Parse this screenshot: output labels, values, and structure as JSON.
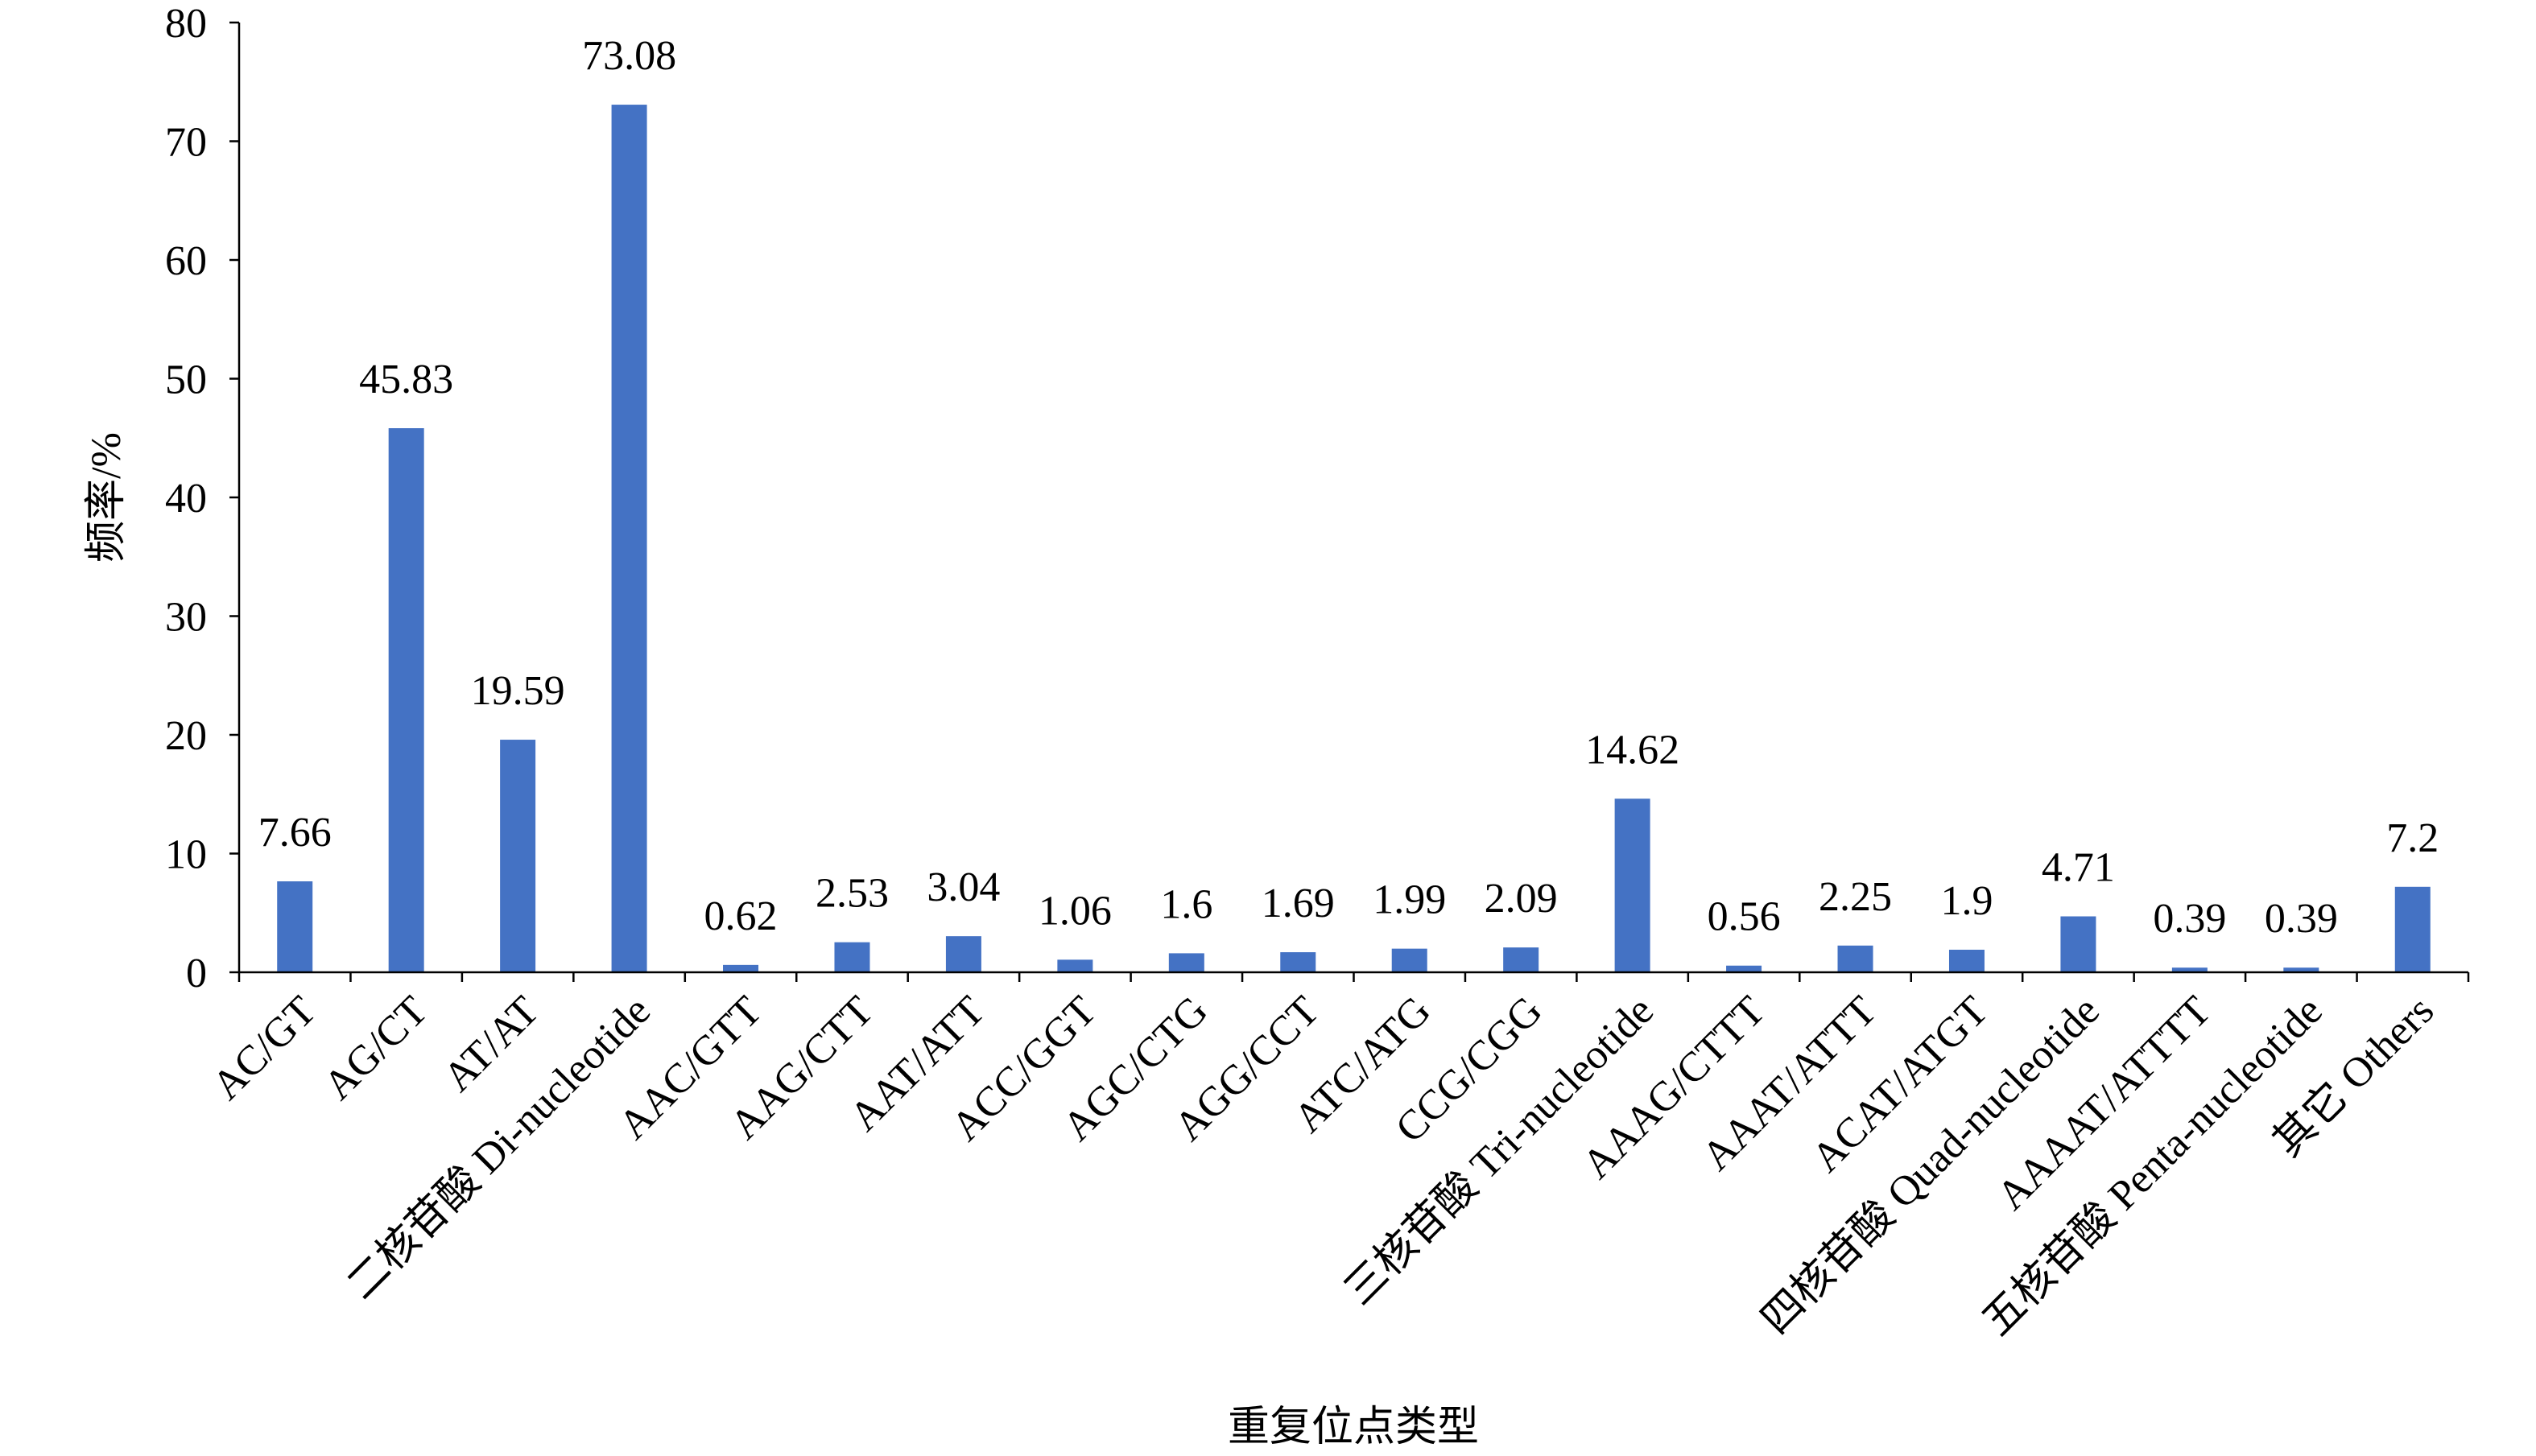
{
  "chart_data": {
    "type": "bar",
    "categories": [
      "AC/GT",
      "AG/CT",
      "AT/AT",
      "二核苷酸 Di-nucleotide",
      "AAC/GTT",
      "AAG/CTT",
      "AAT/ATT",
      "ACC/GGT",
      "AGC/CTG",
      "AGG/CCT",
      "ATC/ATG",
      "CCG/CGG",
      "三核苷酸 Tri-nucleotide",
      "AAAG/CTTT",
      "AAAT/ATTT",
      "ACAT/ATGT",
      "四核苷酸 Quad-nucleotide",
      "AAAAT/ATTTT",
      "五核苷酸 Penta-nucleotide",
      "其它 Others"
    ],
    "values": [
      7.66,
      45.83,
      19.59,
      73.08,
      0.62,
      2.53,
      3.04,
      1.06,
      1.6,
      1.69,
      1.99,
      2.09,
      14.62,
      0.56,
      2.25,
      1.9,
      4.71,
      0.39,
      0.39,
      7.2
    ],
    "xlabel": "重复位点类型",
    "ylabel": "频率/%",
    "ylim": [
      0,
      80
    ],
    "yticks": [
      0,
      10,
      20,
      30,
      40,
      50,
      60,
      70,
      80
    ],
    "grid": false,
    "legend": null,
    "colors": {
      "bar": "#4472C4",
      "axis": "#000000",
      "text": "#000000"
    }
  }
}
